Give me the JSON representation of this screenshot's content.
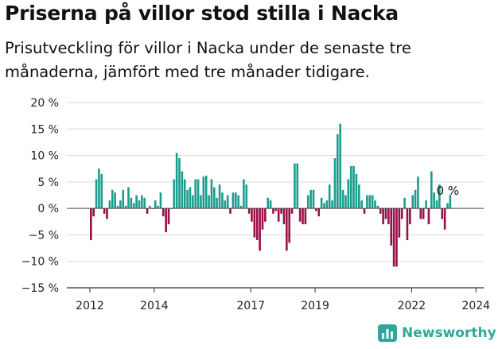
{
  "title": "Priserna på villor stod stilla i Nacka",
  "subtitle": "Prisutveckling för villor i Nacka under de senaste tre månaderna, jämfört med tre månader tidigare.",
  "brand": {
    "name": "Newsworthy",
    "icon": "bar-chart-logo-icon"
  },
  "colors": {
    "positive": "#1a9d8f",
    "negative": "#990f47",
    "grid": "#d9d9d9",
    "axis": "#333333",
    "brand": "#2fa89a"
  },
  "chart_data": {
    "type": "bar",
    "title": "Priserna på villor stod stilla i Nacka",
    "xlabel": "",
    "ylabel": "",
    "ylim": [
      -15,
      20
    ],
    "grid": true,
    "y_ticks": [
      {
        "value": -15,
        "label": "−15 %"
      },
      {
        "value": -10,
        "label": "−10 %"
      },
      {
        "value": -5,
        "label": "−5 %"
      },
      {
        "value": 0,
        "label": "0 %"
      },
      {
        "value": 5,
        "label": "5 %"
      },
      {
        "value": 10,
        "label": "10 %"
      },
      {
        "value": 15,
        "label": "15 %"
      },
      {
        "value": 20,
        "label": "20 %"
      }
    ],
    "x_ticks": [
      {
        "value": 2012,
        "label": "2012"
      },
      {
        "value": 2014,
        "label": "2014"
      },
      {
        "value": 2017,
        "label": "2017"
      },
      {
        "value": 2019,
        "label": "2019"
      },
      {
        "value": 2022,
        "label": "2022"
      },
      {
        "value": 2024,
        "label": "2024"
      }
    ],
    "x_start": 2012,
    "months_per_bar": 1,
    "annotation": {
      "text": "0 %",
      "value": 0
    },
    "values": [
      -6,
      -1.5,
      5.5,
      7.5,
      6.5,
      -1,
      -2,
      1.5,
      3.5,
      3,
      0.5,
      1.5,
      3.5,
      0.5,
      4,
      2,
      1,
      2.5,
      1.5,
      2.5,
      2,
      -1,
      0.5,
      0,
      1.5,
      0.5,
      3,
      -1.5,
      -4.5,
      -3,
      0,
      5.5,
      10.5,
      9.5,
      7,
      5.5,
      3.5,
      4,
      2.5,
      5.5,
      5.5,
      2.5,
      6,
      6.2,
      2.5,
      5.5,
      4,
      2,
      4.5,
      3,
      1.5,
      2.5,
      -1,
      3,
      3,
      2.5,
      0.5,
      5.5,
      4.5,
      -1,
      -2.5,
      -5.5,
      -6,
      -8,
      -4,
      -2.5,
      2,
      1.5,
      -1,
      -0.5,
      -2.5,
      -1,
      -3,
      -8,
      -6.5,
      -1,
      8.5,
      8.5,
      -2.5,
      -3,
      -3,
      2.5,
      3.5,
      3.5,
      -0.5,
      -1.5,
      2,
      1,
      1.5,
      4.5,
      1.5,
      9.5,
      14,
      16,
      3.5,
      2.5,
      5.5,
      8,
      8,
      6.5,
      4.5,
      1.5,
      -1,
      2.5,
      2.5,
      2.5,
      1.5,
      0.5,
      -1,
      -3,
      -2,
      -3,
      -7,
      -11,
      -11,
      -5.5,
      -2,
      2,
      -6,
      -3,
      2.5,
      3.5,
      6,
      -2,
      -2,
      1.5,
      -3,
      7,
      3,
      1.5,
      4.5,
      -2,
      -4,
      1,
      2.5
    ]
  }
}
